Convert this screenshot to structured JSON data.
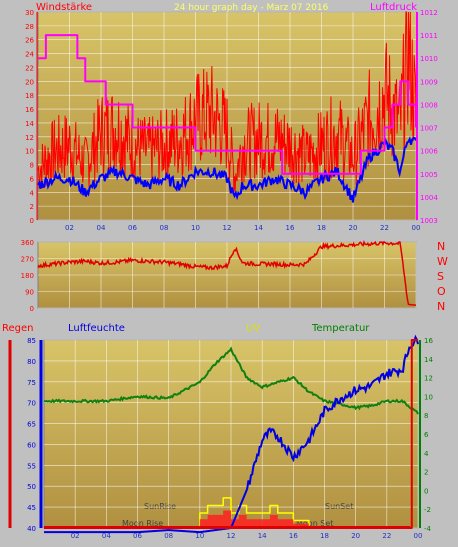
{
  "header": {
    "left_title": "Windstärke",
    "center_title": "24 hour graph day - Marz 07 2016",
    "right_title": "Luftdruck"
  },
  "bottom_header": {
    "regen": "Regen",
    "luftfeuchte": "Luftfeuchte",
    "uv": "UV",
    "temperatur": "Temperatur"
  },
  "annotations": {
    "sunrise": "SunRise",
    "moonrise": "Moon Rise",
    "sunset": "SunSet",
    "moonset": "Moon Set"
  },
  "compass": [
    "N",
    "W",
    "S",
    "O",
    "N"
  ],
  "colors": {
    "plot_top": "#c8b858",
    "plot_bottom": "#b89848",
    "wind_gust": "#ff0000",
    "wind_avg": "#0000ff",
    "pressure": "#ff00ff",
    "direction": "#e00000",
    "humidity": "#0000e0",
    "temperature": "#108010",
    "uv": "#ffff00",
    "rain": "#e00000",
    "grid": "#ffffff"
  },
  "chart_data": [
    {
      "type": "line",
      "name": "wind-pressure",
      "x_ticks": [
        "02",
        "04",
        "06",
        "08",
        "10",
        "12",
        "14",
        "16",
        "18",
        "20",
        "22",
        "00"
      ],
      "xlim": [
        0,
        24
      ],
      "ylim": [
        0,
        30
      ],
      "y_ticks": [
        0,
        2,
        4,
        6,
        8,
        10,
        12,
        14,
        16,
        18,
        20,
        22,
        24,
        26,
        28,
        30
      ],
      "y2lim": [
        1003,
        1012
      ],
      "y2_ticks": [
        1003,
        1004,
        1005,
        1006,
        1007,
        1008,
        1009,
        1010,
        1011,
        1012
      ],
      "series": [
        {
          "name": "Windstärke",
          "axis": "left",
          "x": [
            0,
            1,
            2,
            3,
            4,
            5,
            6,
            7,
            8,
            9,
            10,
            11,
            12,
            12.5,
            13,
            14,
            15,
            16,
            17,
            18,
            19,
            20,
            21,
            22,
            22.5,
            23,
            23.5,
            24
          ],
          "y": [
            5,
            6,
            6,
            4,
            6,
            7,
            6,
            5,
            6,
            5,
            7,
            7,
            6,
            3,
            5,
            5,
            6,
            5,
            4,
            6,
            7,
            3,
            9,
            11,
            10,
            7,
            12,
            11
          ]
        },
        {
          "name": "Windböen",
          "axis": "left",
          "x": [
            0,
            1,
            2,
            3,
            4,
            5,
            6,
            7,
            8,
            9,
            10,
            11,
            12,
            12.5,
            13,
            14,
            15,
            16,
            17,
            18,
            19,
            20,
            21,
            22,
            22.5,
            23,
            23.5,
            24
          ],
          "y": [
            8,
            11,
            12,
            9,
            14,
            15,
            12,
            11,
            12,
            13,
            16,
            17,
            14,
            7,
            12,
            13,
            13,
            12,
            10,
            12,
            14,
            10,
            16,
            20,
            18,
            15,
            28,
            17
          ]
        },
        {
          "name": "Luftdruck",
          "axis": "right",
          "x": [
            0,
            0.3,
            0.5,
            2.5,
            3.0,
            4.0,
            4.3,
            5.5,
            6.0,
            9.5,
            10.0,
            13.5,
            15.5,
            17.5,
            19.5,
            20.5,
            22.0,
            22.5,
            23.0,
            23.5,
            24
          ],
          "y": [
            1010,
            1010,
            1011,
            1010,
            1009,
            1009,
            1008,
            1008,
            1007,
            1007,
            1006,
            1006,
            1005,
            1005,
            1005,
            1006,
            1007,
            1008,
            1009,
            1008,
            1007
          ]
        }
      ]
    },
    {
      "type": "line",
      "name": "wind-direction",
      "xlim": [
        0,
        24
      ],
      "ylim": [
        0,
        360
      ],
      "y_ticks": [
        0,
        90,
        180,
        270,
        360
      ],
      "series": [
        {
          "name": "Windrichtung",
          "x": [
            0,
            1,
            2,
            3,
            4,
            5,
            6,
            7,
            8,
            9,
            10,
            11,
            12,
            12.5,
            13,
            14,
            15,
            16,
            17,
            18,
            19,
            20,
            21,
            22,
            23,
            23.5,
            24
          ],
          "y": [
            230,
            240,
            250,
            255,
            245,
            250,
            260,
            255,
            250,
            240,
            225,
            220,
            230,
            330,
            245,
            240,
            240,
            235,
            240,
            335,
            340,
            345,
            350,
            355,
            352,
            20,
            15
          ]
        }
      ]
    },
    {
      "type": "line",
      "name": "humidity-temperature-uv-rain",
      "x_ticks": [
        "02",
        "04",
        "06",
        "08",
        "10",
        "12",
        "14",
        "16",
        "18",
        "20",
        "22",
        "00"
      ],
      "xlim": [
        0,
        24
      ],
      "ylim": [
        40,
        85
      ],
      "y_ticks": [
        40,
        45,
        50,
        55,
        60,
        65,
        70,
        75,
        80,
        85
      ],
      "y2lim": [
        -4,
        16
      ],
      "y2_ticks": [
        -4,
        -2,
        0,
        2,
        4,
        6,
        8,
        10,
        12,
        14,
        16
      ],
      "series": [
        {
          "name": "Luftfeuchte",
          "axis": "left",
          "x": [
            0,
            2,
            4,
            6,
            8,
            10,
            12,
            13,
            14,
            14.5,
            15,
            16,
            17,
            18,
            19,
            20,
            21,
            22,
            23,
            23.5,
            24
          ],
          "y": [
            39,
            39,
            39,
            39,
            39.5,
            39,
            40,
            49,
            61,
            63,
            62,
            57,
            61,
            68,
            71,
            73,
            74,
            77,
            78,
            84,
            85
          ]
        },
        {
          "name": "Temperatur",
          "axis": "right",
          "x": [
            0,
            2,
            4,
            6,
            8,
            10,
            11,
            12,
            13,
            14,
            15,
            16,
            17,
            18,
            19,
            20,
            21,
            22,
            23,
            24
          ],
          "y": [
            9.5,
            9.5,
            9.5,
            10.0,
            9.8,
            11.5,
            13.5,
            15.0,
            12.0,
            11.0,
            11.5,
            12.0,
            10.5,
            9.5,
            9.2,
            8.8,
            9.0,
            9.5,
            9.5,
            8.2
          ]
        },
        {
          "name": "UV",
          "x": [
            9.0,
            10.0,
            10.5,
            11.0,
            11.5,
            12.0,
            12.5,
            13.0,
            14.0,
            14.5,
            15.0,
            15.5,
            16.0,
            17.0
          ],
          "y": [
            0,
            2,
            3,
            3,
            4,
            2,
            3,
            2,
            2,
            3,
            2,
            2,
            1,
            0
          ]
        },
        {
          "name": "Regen",
          "x": [
            0,
            23.5,
            23.6,
            24
          ],
          "y": [
            0,
            0,
            12,
            12
          ]
        }
      ]
    }
  ]
}
